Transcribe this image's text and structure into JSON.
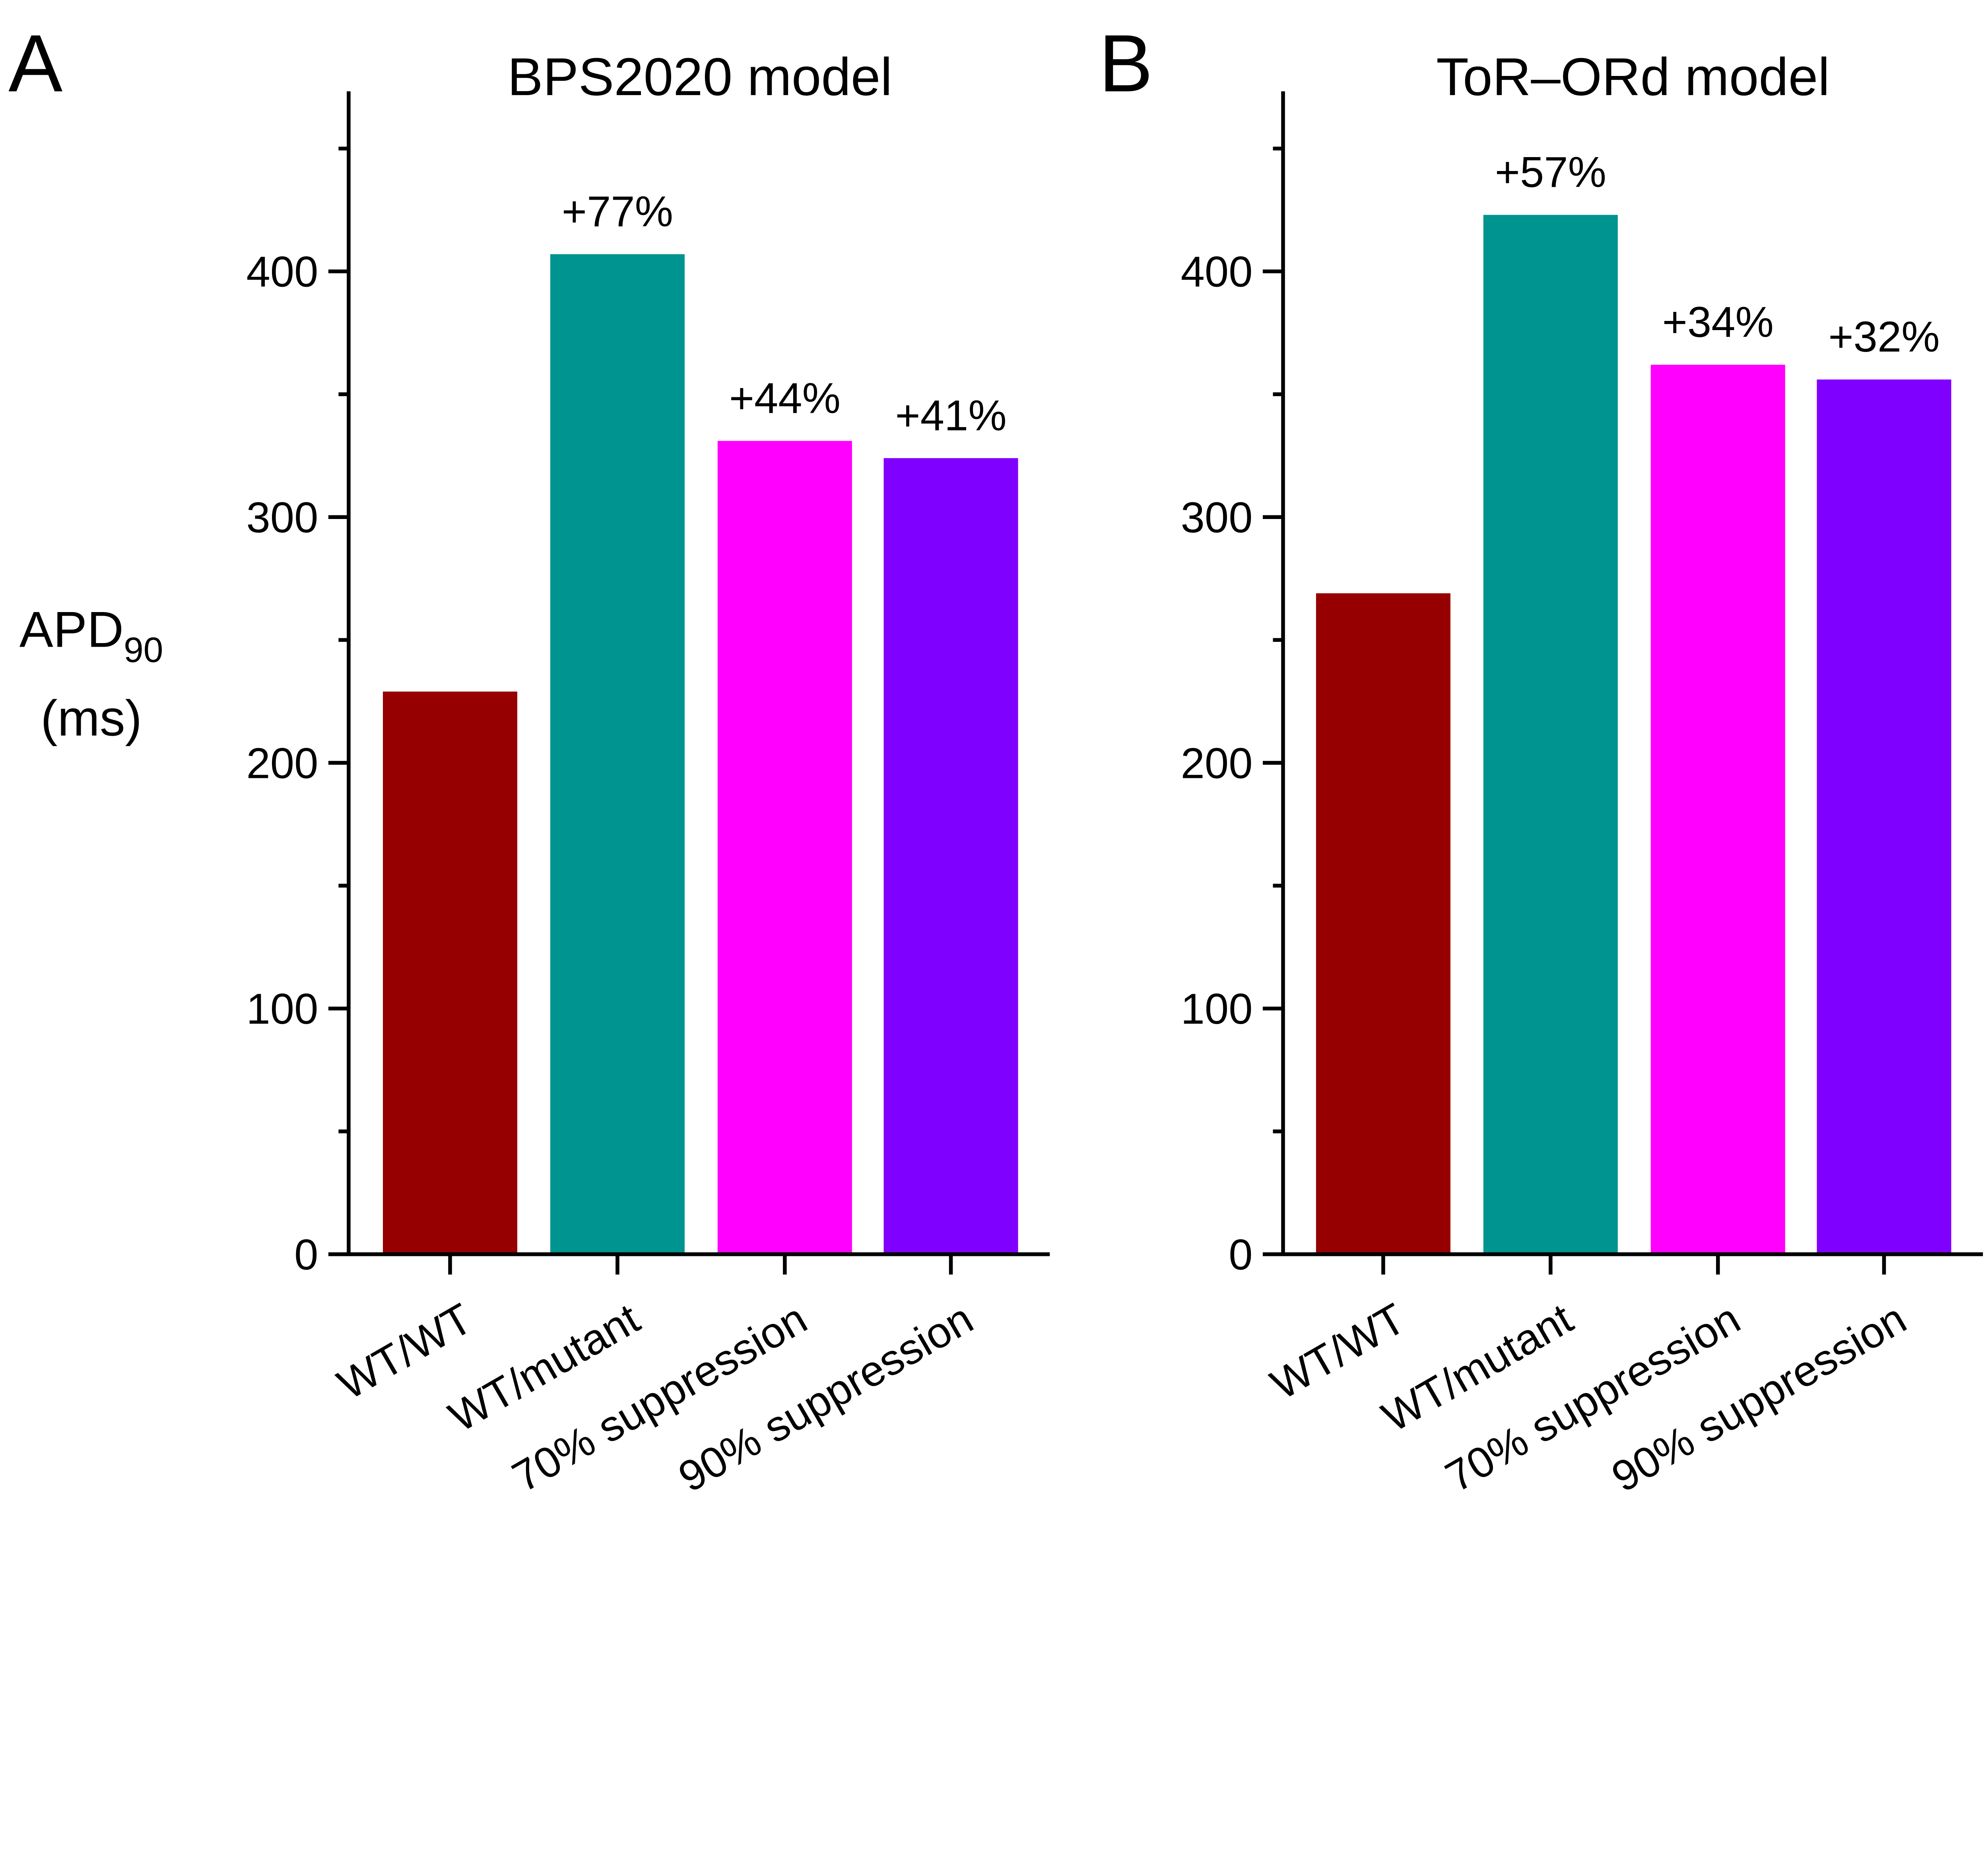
{
  "ylabel": {
    "main": "APD",
    "sub": "90",
    "unit": "(ms)"
  },
  "colors": [
    "#960000",
    "#009490",
    "#ff00ff",
    "#8000ff"
  ],
  "chart_data": [
    {
      "type": "bar",
      "panel_label": "A",
      "title": "BPS2020 model",
      "categories": [
        "WT/WT",
        "WT/mutant",
        "70% suppression",
        "90% suppression"
      ],
      "values": [
        229,
        407,
        331,
        324
      ],
      "annotations": [
        "",
        "+77%",
        "+44%",
        "+41%"
      ],
      "ylim": [
        0,
        473
      ],
      "yticks": [
        0,
        100,
        200,
        300,
        400
      ],
      "ytick_labels": [
        "0",
        "100",
        "200",
        "300",
        "400"
      ],
      "minor_tick_step": 50,
      "grid": false
    },
    {
      "type": "bar",
      "panel_label": "B",
      "title": "ToR–ORd model",
      "categories": [
        "WT/WT",
        "WT/mutant",
        "70% suppression",
        "90% suppression"
      ],
      "values": [
        269,
        423,
        362,
        356
      ],
      "annotations": [
        "",
        "+57%",
        "+34%",
        "+32%"
      ],
      "ylim": [
        0,
        473
      ],
      "yticks": [
        0,
        100,
        200,
        300,
        400
      ],
      "ytick_labels": [
        "0",
        "100",
        "200",
        "300",
        "400"
      ],
      "minor_tick_step": 50,
      "grid": false
    }
  ]
}
